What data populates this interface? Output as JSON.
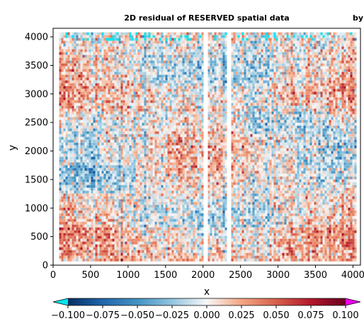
{
  "chart_data": {
    "type": "heatmap",
    "title": "2D residual of RESERVED spatial data",
    "title_right_fragment": "by",
    "xlabel": "x",
    "ylabel": "y",
    "xlim": [
      0,
      4100
    ],
    "ylim": [
      0,
      4150
    ],
    "xticks": [
      0,
      500,
      1000,
      1500,
      2000,
      2500,
      3000,
      3500,
      4000
    ],
    "yticks": [
      0,
      500,
      1000,
      1500,
      2000,
      2500,
      3000,
      3500,
      4000
    ],
    "grid": false,
    "data_extent": {
      "x_min": 80,
      "x_max": 4020,
      "y_min": 100,
      "y_max": 4080
    },
    "gaps_x": [
      [
        2000,
        2060
      ],
      [
        2310,
        2360
      ]
    ],
    "colorbar": {
      "orientation": "horizontal",
      "extend": "both",
      "min": -0.1,
      "max": 0.1,
      "tick_values": [
        -0.1,
        -0.075,
        -0.05,
        -0.025,
        0.0,
        0.025,
        0.05,
        0.075,
        0.1
      ],
      "tick_labels": [
        "−0.100",
        "−0.075",
        "−0.050",
        "−0.025",
        "0.000",
        "0.025",
        "0.050",
        "0.075",
        "0.100"
      ],
      "cmap": "RdBu_r",
      "under_color": "#00e5ee",
      "over_color": "#ee00ee"
    },
    "colors": {
      "low": "#053061",
      "mid": "#f7f7f7",
      "high": "#67001f"
    }
  }
}
